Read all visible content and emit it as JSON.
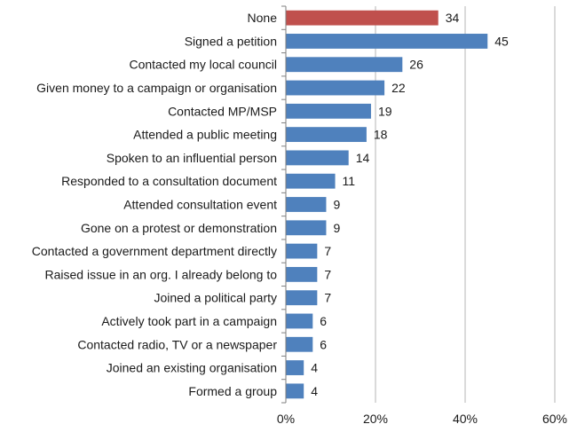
{
  "chart_data": {
    "type": "bar",
    "orientation": "horizontal",
    "categories": [
      "None",
      "Signed a petition",
      "Contacted my local council",
      "Given money to a campaign or organisation",
      "Contacted MP/MSP",
      "Attended a public meeting",
      "Spoken to an influential person",
      "Responded to a consultation document",
      "Attended consultation event",
      "Gone on a protest or demonstration",
      "Contacted a government department directly",
      "Raised issue in an org. I already belong to",
      "Joined a political party",
      "Actively took part in a campaign",
      "Contacted radio, TV or a newspaper",
      "Joined an existing organisation",
      "Formed a group"
    ],
    "values": [
      34,
      45,
      26,
      22,
      19,
      18,
      14,
      11,
      9,
      9,
      7,
      7,
      7,
      6,
      6,
      4,
      4
    ],
    "bar_colors": [
      "#c0504d",
      "#4f81bd",
      "#4f81bd",
      "#4f81bd",
      "#4f81bd",
      "#4f81bd",
      "#4f81bd",
      "#4f81bd",
      "#4f81bd",
      "#4f81bd",
      "#4f81bd",
      "#4f81bd",
      "#4f81bd",
      "#4f81bd",
      "#4f81bd",
      "#4f81bd",
      "#4f81bd"
    ],
    "xlim": [
      0,
      60
    ],
    "xticks": [
      0,
      20,
      40,
      60
    ],
    "xtick_labels": [
      "0%",
      "20%",
      "40%",
      "60%"
    ],
    "grid": "vertical",
    "title": "",
    "xlabel": "",
    "ylabel": ""
  }
}
